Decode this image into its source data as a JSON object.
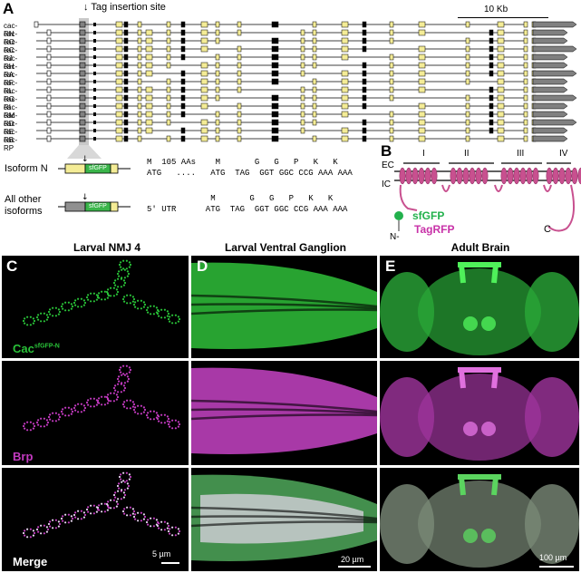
{
  "panels": {
    "a": "A",
    "b": "B",
    "c": "C",
    "d": "D",
    "e": "E"
  },
  "gene_model": {
    "tag_site_label": "Tag insertion site",
    "scale_label": "10 Kb",
    "isoforms": [
      "cac-RN",
      "cac-RO",
      "cac-RC",
      "cac-RJ",
      "cac-RH",
      "cac-RA",
      "cac-RF",
      "cac-RL",
      "cac-RG",
      "cac-RI",
      "cac-RM",
      "cac-RD",
      "cac-RE",
      "cac-RB",
      "cac-RP"
    ]
  },
  "isoform_n": {
    "label": "Isoform N",
    "box": "sfGFP",
    "row1": "M  105 AAs    M       G   G   P   K   K",
    "row2": "ATG   ....   ATG  TAG  GGT GGC CCG AAA AAA",
    "tag_word": "TAG"
  },
  "other_isoforms": {
    "label_line1": "All other",
    "label_line2": "isoforms",
    "box": "sfGFP",
    "row1": "             M       G   G   P   K   K",
    "row2": "5' UTR      ATG  TAG  GGT GGC CCG AAA AAA"
  },
  "topology": {
    "ec": "EC",
    "ic": "IC",
    "domains": [
      "I",
      "II",
      "III",
      "IV"
    ],
    "n_term": "N-",
    "c_term": "C",
    "sfgfp": "sfGFP",
    "tagrfp": "TagRFP",
    "colors": {
      "membrane_protein": "#c8508f",
      "gfp": "#22b14c",
      "rfp": "#c832a8"
    }
  },
  "micrographs": {
    "columns": [
      "Larval NMJ 4",
      "Larval Ventral Ganglion",
      "Adult Brain"
    ],
    "row_labels": {
      "cac_base": "Cac",
      "cac_super": "sfGFP-N",
      "brp": "Brp",
      "merge": "Merge"
    },
    "scale_bars": [
      "5 µm",
      "20 µm",
      "100 µm"
    ],
    "colors": {
      "green": "#29c238",
      "magenta": "#c33ac0"
    }
  }
}
